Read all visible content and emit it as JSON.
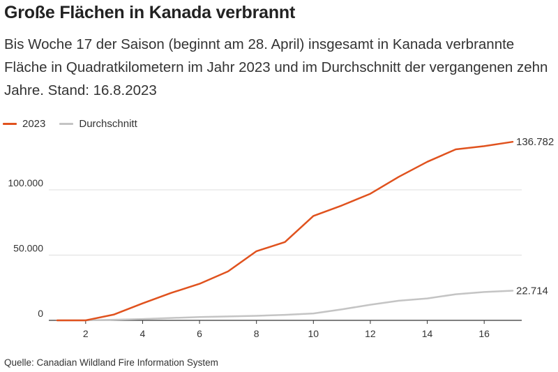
{
  "title": "Große Flächen in Kanada verbrannt",
  "subtitle": "Bis Woche 17 der Saison (beginnt am 28. April) insgesamt in Kanada verbrannte Fläche in Quadratkilometern im Jahr 2023 und im Durchschnitt der vergangenen zehn Jahre. Stand: 16.8.2023",
  "source": "Quelle: Canadian Wildland Fire Information System",
  "chart_data": {
    "type": "line",
    "title": "Große Flächen in Kanada verbrannt",
    "xlabel": "",
    "ylabel": "",
    "xlim": [
      1,
      17
    ],
    "ylim": [
      0,
      140000
    ],
    "xticks": [
      2,
      4,
      6,
      8,
      10,
      12,
      14,
      16
    ],
    "yticks": [
      0,
      50000,
      100000
    ],
    "ytick_labels": [
      "0",
      "50.000",
      "100.000"
    ],
    "grid": "horizontal",
    "legend_position": "top-left",
    "x": [
      1,
      2,
      3,
      4,
      5,
      6,
      7,
      8,
      9,
      10,
      11,
      12,
      13,
      14,
      15,
      16,
      17
    ],
    "series": [
      {
        "name": "2023",
        "color": "#e0521e",
        "values": [
          0,
          0,
          4500,
          13000,
          21000,
          28000,
          37500,
          53000,
          60000,
          80000,
          88000,
          97000,
          110000,
          121500,
          131000,
          133500,
          136782
        ],
        "end_label": "136.782"
      },
      {
        "name": "Durchschnitt",
        "color": "#c4c4c4",
        "values": [
          0,
          0,
          500,
          1000,
          1800,
          2500,
          3000,
          3500,
          4200,
          5300,
          8400,
          12000,
          15000,
          16800,
          20000,
          21700,
          22714
        ],
        "end_label": "22.714"
      }
    ]
  }
}
